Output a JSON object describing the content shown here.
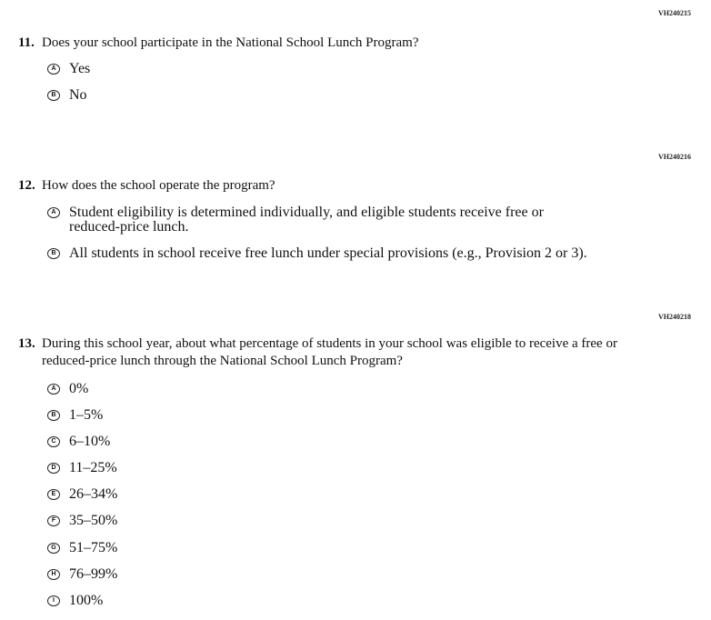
{
  "questions": [
    {
      "id": "VH240215",
      "number": "11.",
      "text": "Does your school participate in the National School Lunch Program?",
      "options": [
        {
          "letter": "A",
          "text": "Yes"
        },
        {
          "letter": "B",
          "text": "No"
        }
      ]
    },
    {
      "id": "VH240216",
      "number": "12.",
      "text": "How does the school operate the program?",
      "options": [
        {
          "letter": "A",
          "text": "Student eligibility is determined individually, and eligible students receive free or reduced-price lunch."
        },
        {
          "letter": "B",
          "text": "All students in school receive free lunch under special provisions (e.g., Provision 2 or 3)."
        }
      ]
    },
    {
      "id": "VH240218",
      "number": "13.",
      "text": "During this school year, about what percentage of students in your school was eligible to receive a free or reduced-price lunch through the National School Lunch Program?",
      "options": [
        {
          "letter": "A",
          "text": "0%"
        },
        {
          "letter": "B",
          "text": "1–5%"
        },
        {
          "letter": "C",
          "text": "6–10%"
        },
        {
          "letter": "D",
          "text": "11–25%"
        },
        {
          "letter": "E",
          "text": "26–34%"
        },
        {
          "letter": "F",
          "text": "35–50%"
        },
        {
          "letter": "G",
          "text": "51–75%"
        },
        {
          "letter": "H",
          "text": "76–99%"
        },
        {
          "letter": "I",
          "text": "100%"
        }
      ]
    }
  ]
}
